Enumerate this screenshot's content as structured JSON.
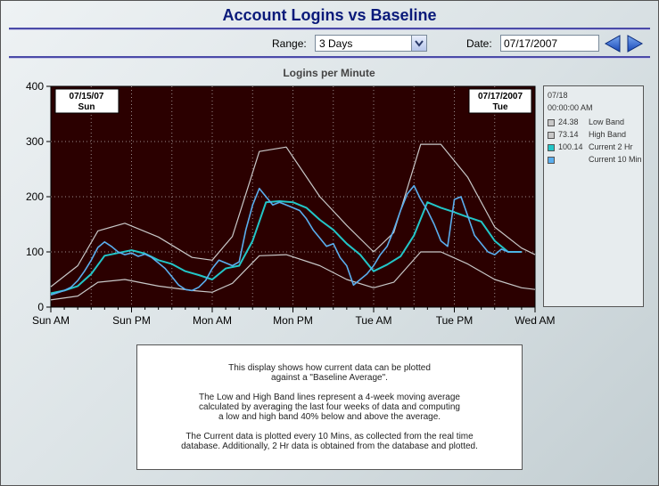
{
  "header": {
    "title": "Account Logins vs Baseline"
  },
  "controls": {
    "range_label": "Range:",
    "range_value": "3 Days",
    "date_label": "Date:",
    "date_value": "07/17/2007"
  },
  "icons": {
    "prev": "left-arrow-icon",
    "next": "right-arrow-icon",
    "dropdown": "chevron-down-icon"
  },
  "colors": {
    "plot_bg": "#2b0000",
    "band": "#c8c8c8",
    "two_hr": "#22c6c8",
    "ten_min": "#5aaeee",
    "title_blue": "#0a1a7a"
  },
  "chart_data": {
    "type": "line",
    "title": "Logins per Minute",
    "x_unit": "hours since start of window (Sun 00:00)",
    "xlim": [
      0,
      72
    ],
    "ylim": [
      0,
      400
    ],
    "y_ticks": [
      0,
      100,
      200,
      300,
      400
    ],
    "x_ticks": [
      {
        "x": 0,
        "label": "Sun AM"
      },
      {
        "x": 12,
        "label": "Sun PM"
      },
      {
        "x": 24,
        "label": "Mon AM"
      },
      {
        "x": 36,
        "label": "Mon PM"
      },
      {
        "x": 48,
        "label": "Tue AM"
      },
      {
        "x": 60,
        "label": "Tue PM"
      },
      {
        "x": 72,
        "label": "Wed AM"
      }
    ],
    "grid": true,
    "annotations": {
      "start": {
        "date": "07/15/07",
        "day": "Sun"
      },
      "end": {
        "date": "07/17/2007",
        "day": "Tue"
      }
    },
    "series": [
      {
        "name": "High Band",
        "x": [
          0,
          4,
          7,
          11,
          16,
          21,
          24,
          27,
          31,
          35,
          40,
          44,
          48,
          51,
          55,
          58,
          62,
          66,
          70,
          72
        ],
        "values": [
          37,
          75,
          138,
          152,
          127,
          90,
          85,
          128,
          282,
          290,
          200,
          148,
          100,
          135,
          295,
          295,
          235,
          145,
          107,
          95
        ]
      },
      {
        "name": "Low Band",
        "x": [
          0,
          4,
          7,
          11,
          16,
          21,
          24,
          27,
          31,
          35,
          40,
          44,
          48,
          51,
          55,
          58,
          62,
          66,
          70,
          72
        ],
        "values": [
          13,
          20,
          45,
          50,
          38,
          30,
          27,
          43,
          93,
          95,
          75,
          50,
          35,
          45,
          100,
          100,
          78,
          50,
          35,
          32
        ]
      },
      {
        "name": "Current 2 Hr",
        "x": [
          0,
          2,
          4,
          6,
          8,
          10,
          12,
          14,
          16,
          18,
          20,
          22,
          24,
          26,
          28,
          30,
          32,
          34,
          36,
          38,
          40,
          42,
          44,
          46,
          48,
          50,
          52,
          54,
          56,
          58,
          60,
          62,
          64,
          66,
          68,
          70
        ],
        "values": [
          25,
          30,
          38,
          60,
          93,
          98,
          103,
          97,
          85,
          78,
          65,
          58,
          50,
          70,
          75,
          120,
          190,
          192,
          190,
          180,
          158,
          140,
          115,
          95,
          65,
          77,
          92,
          130,
          190,
          180,
          172,
          163,
          155,
          120,
          100,
          100
        ]
      },
      {
        "name": "Current 10 Min",
        "x": [
          0,
          1,
          2,
          3,
          4,
          5,
          6,
          7,
          8,
          9,
          10,
          11,
          12,
          13,
          14,
          15,
          16,
          17,
          18,
          19,
          20,
          21,
          22,
          23,
          24,
          25,
          26,
          27,
          28,
          29,
          30,
          31,
          32,
          33,
          34,
          35,
          36,
          37,
          38,
          39,
          40,
          41,
          42,
          43,
          44,
          45,
          46,
          47,
          48,
          49,
          50,
          51,
          52,
          53,
          54,
          55,
          56,
          57,
          58,
          59,
          60,
          61,
          62,
          63,
          64,
          65,
          66,
          67,
          68,
          69,
          70
        ],
        "values": [
          22,
          26,
          30,
          36,
          48,
          65,
          85,
          108,
          118,
          110,
          100,
          95,
          98,
          92,
          96,
          90,
          80,
          70,
          55,
          40,
          32,
          30,
          36,
          48,
          70,
          85,
          80,
          75,
          82,
          140,
          185,
          215,
          200,
          185,
          190,
          185,
          180,
          175,
          160,
          140,
          125,
          110,
          115,
          90,
          75,
          40,
          50,
          60,
          75,
          95,
          110,
          140,
          175,
          205,
          220,
          195,
          175,
          150,
          120,
          110,
          195,
          200,
          165,
          130,
          115,
          100,
          95,
          105,
          100,
          100,
          100
        ]
      }
    ]
  },
  "legend": {
    "date": "07/18",
    "time": "00:00:00 AM",
    "items": [
      {
        "value": "24.38",
        "name": "Low Band",
        "color": "#c8c8c8"
      },
      {
        "value": "73.14",
        "name": "High Band",
        "color": "#c8c8c8"
      },
      {
        "value": "100.14",
        "name": "Current 2 Hr",
        "color": "#22c6c8"
      },
      {
        "value": "",
        "name": "Current 10 Min",
        "color": "#5aaeee"
      }
    ]
  },
  "note": {
    "p1": "This display shows how current data can be plotted\nagainst a \"Baseline Average\".",
    "p2": "The Low and High Band lines represent a 4-week moving average\ncalculated by averaging the last four weeks of data and computing\na low and high band 40% below and above the average.",
    "p3": "The Current data is plotted every 10 Mins, as collected from the real time\ndatabase.  Additionally, 2 Hr data is obtained from the database and plotted."
  }
}
